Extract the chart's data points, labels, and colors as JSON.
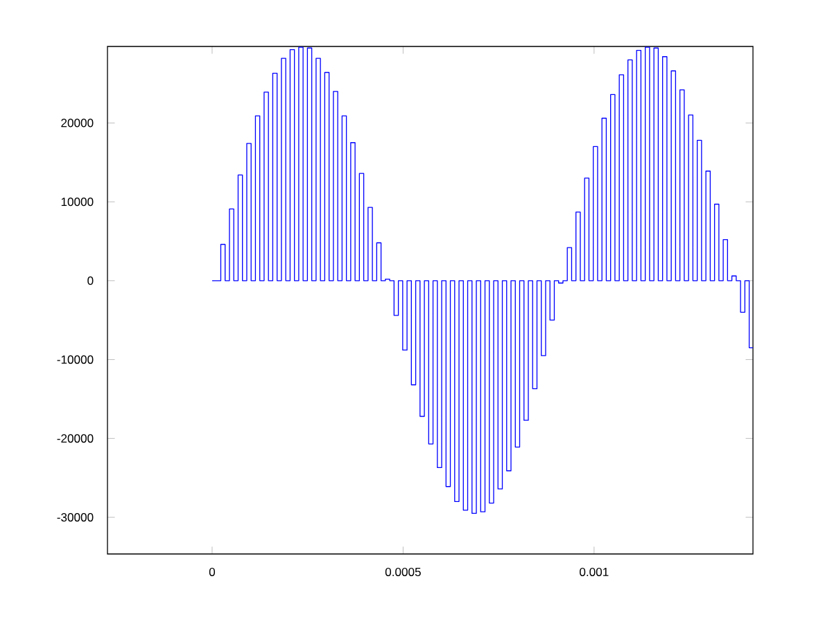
{
  "chart_data": {
    "type": "step",
    "xlim": [
      -0.000274,
      0.001416
    ],
    "ylim": [
      -34650,
      29700
    ],
    "xticks": [
      0,
      0.0005,
      0.001
    ],
    "yticks": [
      -30000,
      -20000,
      -10000,
      0,
      10000,
      20000
    ],
    "grid": false,
    "series": [
      {
        "color": "#0000ff",
        "x": [
          0,
          1.134e-05,
          2.268e-05,
          3.402e-05,
          4.536e-05,
          5.67e-05,
          6.804e-05,
          7.938e-05,
          9.072e-05,
          0.00010206,
          0.0001134,
          0.00012474,
          0.00013608,
          0.00014742,
          0.00015876,
          0.0001701,
          0.00018144,
          0.00019278,
          0.00020412,
          0.00021546,
          0.0002268,
          0.00023814,
          0.00024948,
          0.00026082,
          0.00027216,
          0.0002835,
          0.00029484,
          0.00030618,
          0.00031752,
          0.00032886,
          0.0003402,
          0.00035154,
          0.00036288,
          0.00037422,
          0.00038556,
          0.0003969,
          0.00040824,
          0.00041958,
          0.00043092,
          0.00044226,
          0.0004536,
          0.00046494,
          0.00047628,
          0.00048762,
          0.00049896,
          0.0005103,
          0.00052164,
          0.00053298,
          0.00054432,
          0.00055566,
          0.000567,
          0.00057834,
          0.00058968,
          0.00060102,
          0.00061236,
          0.0006237,
          0.00063504,
          0.00064638,
          0.00065772,
          0.00066906,
          0.0006804,
          0.00069174,
          0.00070308,
          0.00071442,
          0.00072576,
          0.0007371,
          0.00074844,
          0.00075978,
          0.00077112,
          0.00078246,
          0.0007938,
          0.00080514,
          0.00081648,
          0.00082782,
          0.00083916,
          0.0008505,
          0.00086184,
          0.00087318,
          0.00088452,
          0.00089586,
          0.0009072,
          0.00091854,
          0.00092988,
          0.00094122,
          0.00095256,
          0.0009639,
          0.00097524,
          0.00098658,
          0.00099792,
          0.00100926,
          0.0010206,
          0.00103194,
          0.00104328,
          0.00105462,
          0.00106596,
          0.0010773,
          0.00108864,
          0.00109998,
          0.00111132,
          0.00112266,
          0.001134,
          0.00114534,
          0.00115668,
          0.00116802,
          0.00117936,
          0.0011907,
          0.00120204,
          0.00121338,
          0.00122472,
          0.00123606,
          0.0012474,
          0.00125874,
          0.00127008,
          0.00128142,
          0.00129276,
          0.0013041,
          0.00131544,
          0.00132678,
          0.00133812,
          0.00134946,
          0.0013608,
          0.00137214,
          0.00138348,
          0.00139482,
          0.00140616,
          0.001416
        ],
        "values": [
          0,
          0,
          4600,
          0,
          9100,
          0,
          13400,
          0,
          17400,
          0,
          20900,
          0,
          23900,
          0,
          26300,
          0,
          28200,
          0,
          29300,
          0,
          29600,
          0,
          29500,
          0,
          28200,
          0,
          26400,
          0,
          24000,
          0,
          20900,
          0,
          17500,
          0,
          13600,
          0,
          9300,
          0,
          4800,
          0,
          200,
          0,
          -4400,
          0,
          -8800,
          0,
          -13200,
          0,
          -17200,
          0,
          -20700,
          0,
          -23700,
          0,
          -26100,
          0,
          -28000,
          0,
          -29100,
          0,
          -29500,
          0,
          -29300,
          0,
          -28200,
          0,
          -26400,
          0,
          -24100,
          0,
          -21100,
          0,
          -17700,
          0,
          -13700,
          0,
          -9500,
          0,
          -5000,
          0,
          -300,
          0,
          4200,
          0,
          8700,
          0,
          13000,
          0,
          17000,
          0,
          20600,
          0,
          23600,
          0,
          26100,
          0,
          28000,
          0,
          29200,
          0,
          29600,
          0,
          29500,
          0,
          28400,
          0,
          26600,
          0,
          24200,
          0,
          21000,
          0,
          17800,
          0,
          13900,
          0,
          9700,
          0,
          5200,
          0,
          600,
          0,
          -4000,
          0,
          -8500,
          -8500
        ]
      }
    ]
  }
}
